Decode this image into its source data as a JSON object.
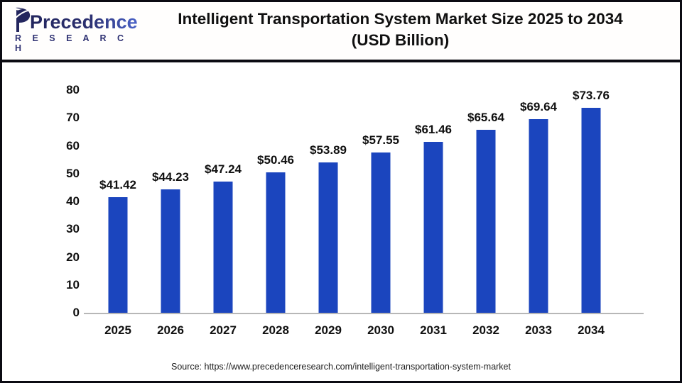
{
  "header": {
    "logo_brand": "Precedence",
    "logo_sub": "R E S E A R C H",
    "title_line1": "Intelligent Transportation System Market Size 2025 to 2034",
    "title_line2": "(USD Billion)"
  },
  "chart_data": {
    "type": "bar",
    "title": "Intelligent Transportation System Market Size 2025 to 2034 (USD Billion)",
    "categories": [
      "2025",
      "2026",
      "2027",
      "2028",
      "2029",
      "2030",
      "2031",
      "2032",
      "2033",
      "2034"
    ],
    "values": [
      41.42,
      44.23,
      47.24,
      50.46,
      53.89,
      57.55,
      61.46,
      65.64,
      69.64,
      73.76
    ],
    "bar_labels": [
      "$41.42",
      "$44.23",
      "$47.24",
      "$50.46",
      "$53.89",
      "$57.55",
      "$61.46",
      "$65.64",
      "$69.64",
      "$73.76"
    ],
    "xlabel": "",
    "ylabel": "",
    "ylim": [
      0,
      80
    ],
    "yticks": [
      0,
      10,
      20,
      30,
      40,
      50,
      60,
      70,
      80
    ],
    "bar_color": "#1b45be",
    "grid": false,
    "legend": "none"
  },
  "footer": {
    "source": "Source: https://www.precedenceresearch.com/intelligent-transportation-system-market"
  }
}
